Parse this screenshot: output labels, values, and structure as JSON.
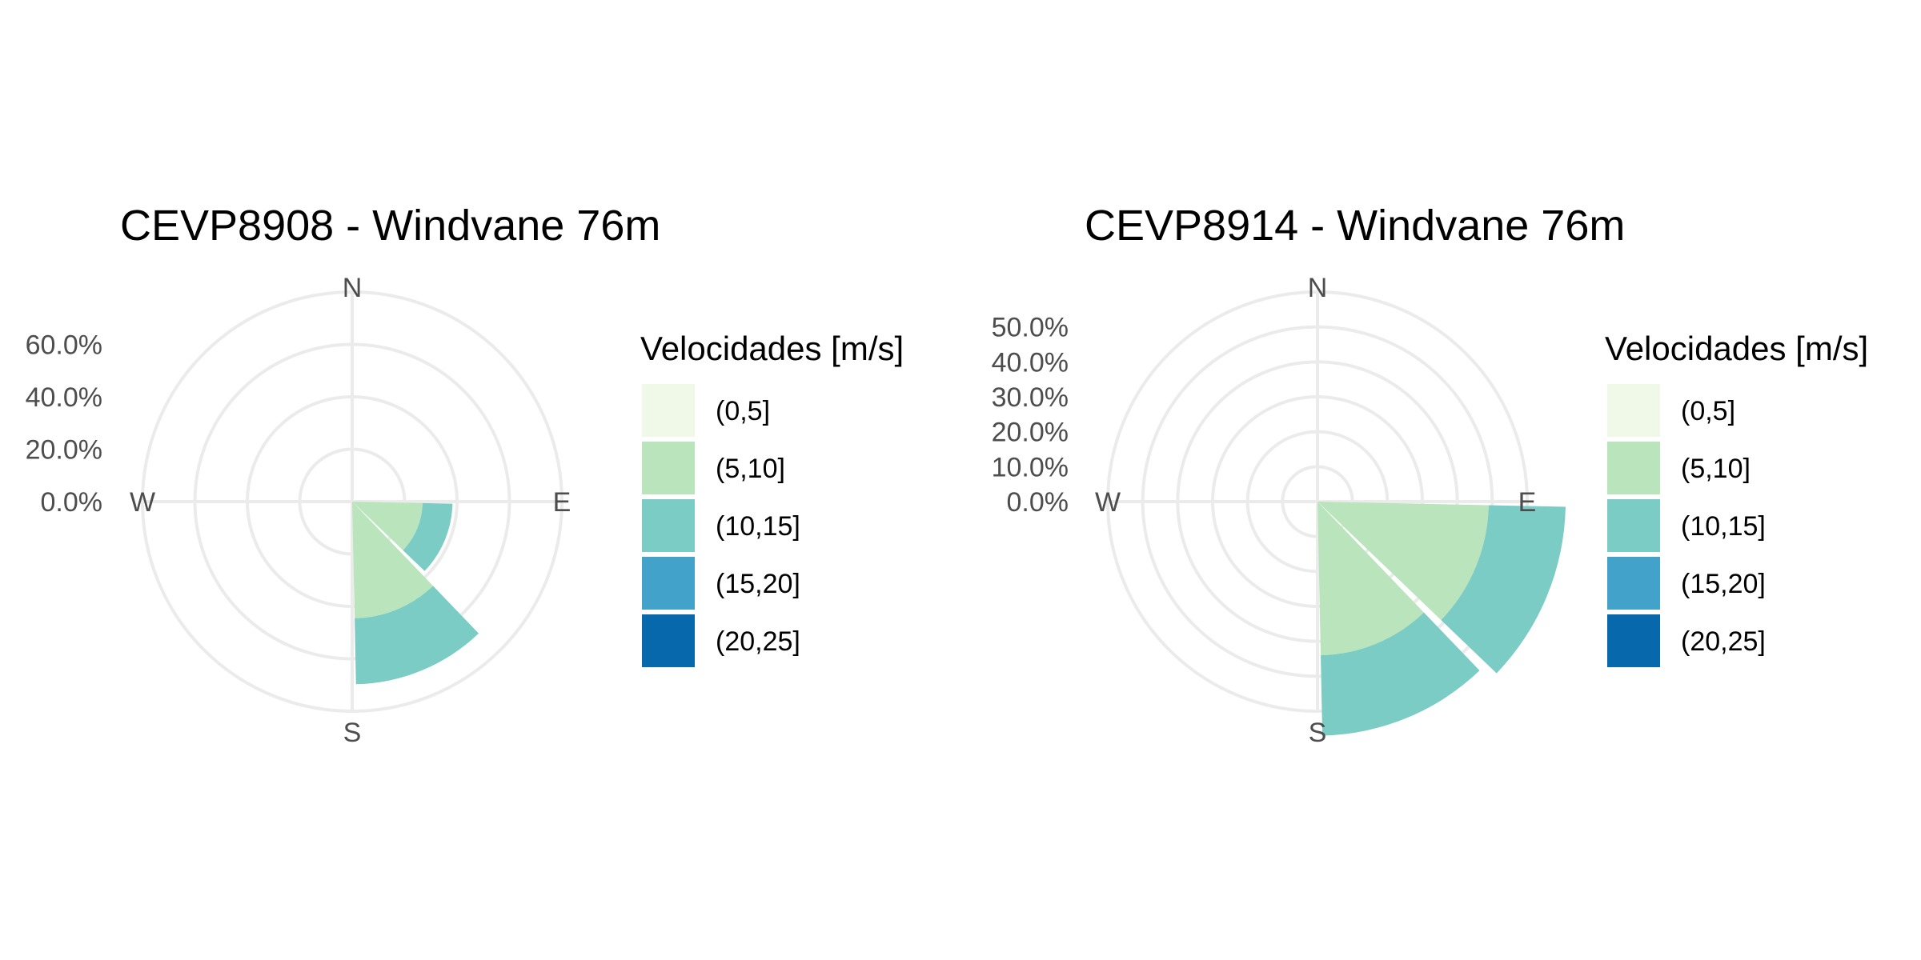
{
  "chart_data": [
    {
      "type": "wind-rose",
      "title": "CEVP8908 - Windvane 76m",
      "radial_ticks": [
        "0.0%",
        "20.0%",
        "40.0%",
        "60.0%"
      ],
      "radial_max": 70,
      "compass_labels": [
        "N",
        "E",
        "S",
        "W"
      ],
      "legend_title": "Velocidades [m/s]",
      "bins": [
        "(0,5]",
        "(5,10]",
        "(10,15]",
        "(15,20]",
        "(20,25]"
      ],
      "colors": [
        "#f0f9e8",
        "#bae4bc",
        "#7bccc4",
        "#43a2ca",
        "#0868ac"
      ],
      "sectors": [
        {
          "direction_deg": 112.5,
          "values": [
            0,
            23.5,
            10,
            0,
            0
          ]
        },
        {
          "direction_deg": 157.5,
          "values": [
            0,
            39,
            22,
            0,
            0
          ]
        }
      ]
    },
    {
      "type": "wind-rose",
      "title": "CEVP8914 - Windvane 76m",
      "radial_ticks": [
        "0.0%",
        "10.0%",
        "20.0%",
        "30.0%",
        "40.0%",
        "50.0%"
      ],
      "radial_max": 60,
      "compass_labels": [
        "N",
        "E",
        "S",
        "W"
      ],
      "legend_title": "Velocidades [m/s]",
      "bins": [
        "(0,5]",
        "(5,10]",
        "(10,15]",
        "(15,20]",
        "(20,25]"
      ],
      "colors": [
        "#f0f9e8",
        "#bae4bc",
        "#7bccc4",
        "#43a2ca",
        "#0868ac"
      ],
      "sectors": [
        {
          "direction_deg": 112.5,
          "values": [
            0,
            49,
            22,
            0,
            0
          ]
        },
        {
          "direction_deg": 157.5,
          "values": [
            0,
            44,
            23,
            0,
            0
          ]
        }
      ]
    }
  ]
}
